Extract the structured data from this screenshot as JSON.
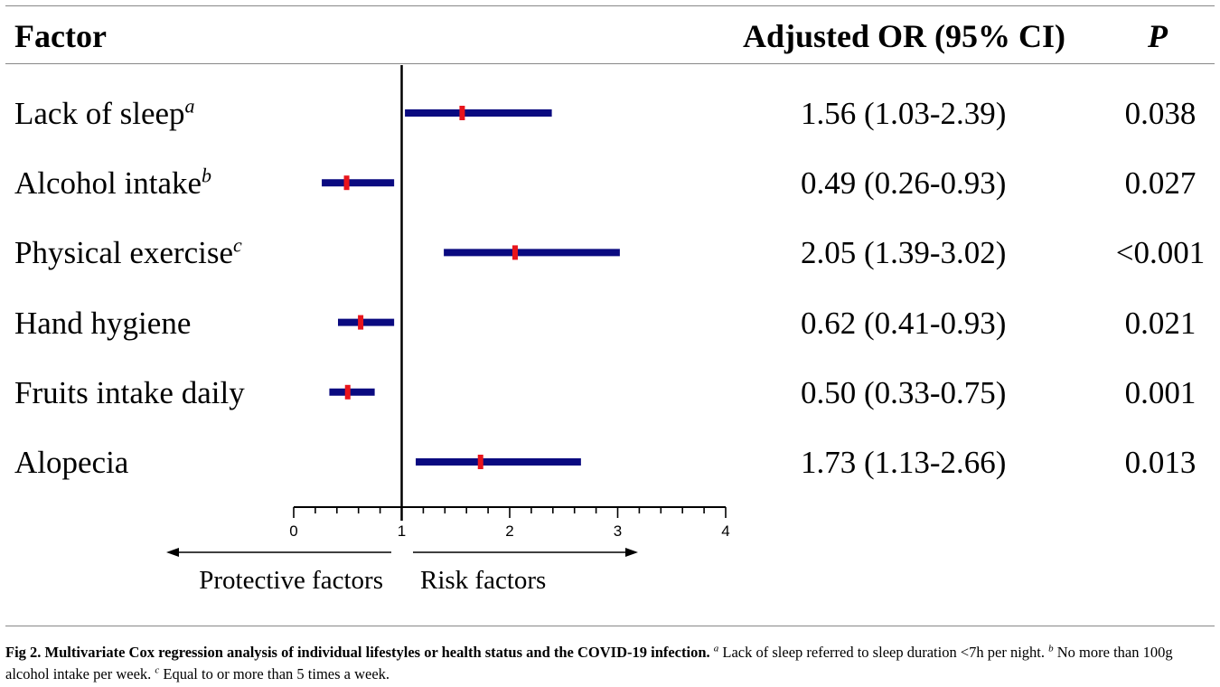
{
  "header": {
    "factor": "Factor",
    "or": "Adjusted OR (95% CI)",
    "p": "P"
  },
  "rows": [
    {
      "label": "Lack of sleep",
      "note": "a",
      "or_text": "1.56 (1.03-2.39)",
      "p_text": "0.038"
    },
    {
      "label": "Alcohol intake",
      "note": "b",
      "or_text": "0.49 (0.26-0.93)",
      "p_text": "0.027"
    },
    {
      "label": "Physical exercise",
      "note": "c",
      "or_text": "2.05 (1.39-3.02)",
      "p_text": "<0.001"
    },
    {
      "label": "Hand hygiene",
      "note": "",
      "or_text": "0.62 (0.41-0.93)",
      "p_text": "0.021"
    },
    {
      "label": "Fruits intake daily",
      "note": "",
      "or_text": "0.50 (0.33-0.75)",
      "p_text": "0.001"
    },
    {
      "label": "Alopecia",
      "note": "",
      "or_text": "1.73 (1.13-2.66)",
      "p_text": "0.013"
    }
  ],
  "chart_data": {
    "type": "forest",
    "reference_line": 1,
    "xlim": [
      0,
      4
    ],
    "x_ticks": [
      "0",
      "1",
      "2",
      "3",
      "4"
    ],
    "bar_color": "#0a0a80",
    "point_color": "#e8141c",
    "series": [
      {
        "category": "Lack of sleep",
        "or": 1.56,
        "lower": 1.03,
        "upper": 2.39
      },
      {
        "category": "Alcohol intake",
        "or": 0.49,
        "lower": 0.26,
        "upper": 0.93
      },
      {
        "category": "Physical exercise",
        "or": 2.05,
        "lower": 1.39,
        "upper": 3.02
      },
      {
        "category": "Hand hygiene",
        "or": 0.62,
        "lower": 0.41,
        "upper": 0.93
      },
      {
        "category": "Fruits intake daily",
        "or": 0.5,
        "lower": 0.33,
        "upper": 0.75
      },
      {
        "category": "Alopecia",
        "or": 1.73,
        "lower": 1.13,
        "upper": 2.66
      }
    ],
    "arrow_left_label": "Protective factors",
    "arrow_right_label": "Risk factors"
  },
  "caption": {
    "title": "Fig 2. Multivariate Cox regression analysis of individual lifestyles or health status and the COVID-19 infection.",
    "note_a": "Lack of sleep referred to sleep duration <7h per night.",
    "note_b": "No more than 100g alcohol intake per week.",
    "note_c": "Equal to or more than 5 times a week."
  }
}
